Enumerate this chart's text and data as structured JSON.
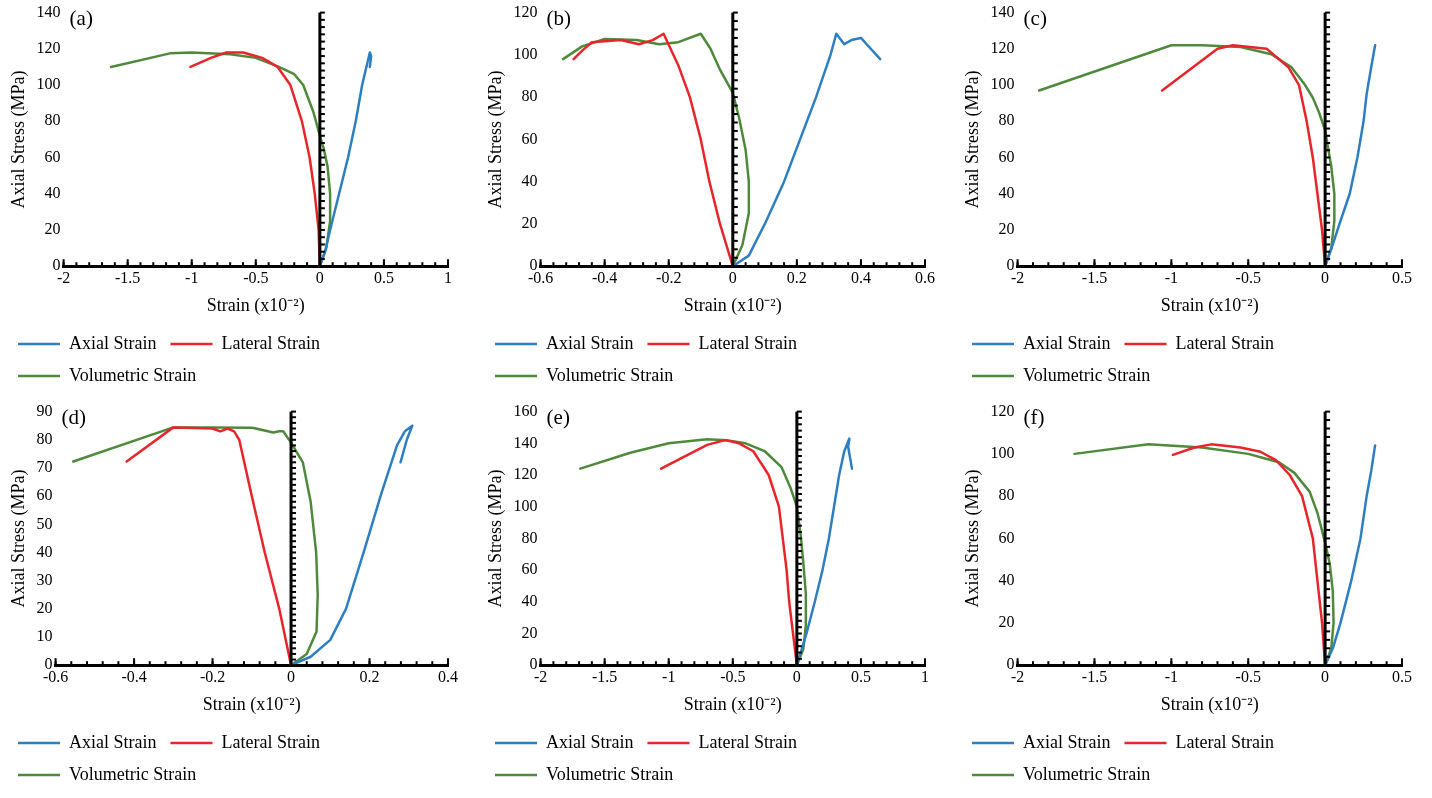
{
  "chart_data": [
    {
      "type": "line",
      "title": "(a)",
      "xlabel": "Strain (x10⁻²)",
      "ylabel": "Axial Stress (MPa)",
      "xlim": [
        -2,
        1
      ],
      "xticks": [
        -2,
        -1.5,
        -1,
        -0.5,
        0,
        0.5,
        1
      ],
      "ylim": [
        0,
        140
      ],
      "yticks": [
        0,
        20,
        40,
        60,
        80,
        100,
        120,
        140
      ],
      "legend": "bottom",
      "series": [
        {
          "name": "Axial Strain",
          "color": "#2e7ec2",
          "x": [
            0,
            0.04,
            0.08,
            0.15,
            0.22,
            0.28,
            0.33,
            0.37,
            0.39,
            0.4,
            0.39
          ],
          "values": [
            0,
            8,
            20,
            40,
            60,
            80,
            100,
            112,
            118,
            116,
            110
          ]
        },
        {
          "name": "Lateral Strain",
          "color": "#e8252a",
          "x": [
            0,
            -0.01,
            -0.04,
            -0.08,
            -0.14,
            -0.23,
            -0.33,
            -0.45,
            -0.6,
            -0.73,
            -0.85,
            -1.01
          ],
          "values": [
            0,
            20,
            40,
            60,
            80,
            100,
            110,
            115,
            118,
            118,
            115,
            110
          ]
        },
        {
          "name": "Volumetric Strain",
          "color": "#4f8a3c",
          "x": [
            0,
            0.05,
            0.08,
            0.08,
            0.06,
            0.03,
            0,
            -0.05,
            -0.13,
            -0.2,
            -0.32,
            -0.5,
            -0.7,
            -1,
            -1.17,
            -1.63
          ],
          "values": [
            0,
            10,
            25,
            40,
            55,
            65,
            72,
            85,
            100,
            106,
            110,
            115,
            117,
            118,
            117.5,
            110
          ]
        }
      ]
    },
    {
      "type": "line",
      "title": "(b)",
      "xlabel": "Strain (x10⁻²)",
      "ylabel": "Axial Stress (MPa)",
      "xlim": [
        -0.6,
        0.6
      ],
      "xticks": [
        -0.6,
        -0.4,
        -0.2,
        0,
        0.2,
        0.4,
        0.6
      ],
      "ylim": [
        0,
        120
      ],
      "yticks": [
        0,
        20,
        40,
        60,
        80,
        100,
        120
      ],
      "legend": "bottom",
      "series": [
        {
          "name": "Axial Strain",
          "color": "#2e7ec2",
          "x": [
            0,
            0.05,
            0.1,
            0.16,
            0.21,
            0.26,
            0.305,
            0.323,
            0.348,
            0.37,
            0.4,
            0.43,
            0.46
          ],
          "values": [
            0,
            5,
            20,
            40,
            60,
            80,
            100,
            110,
            105,
            107,
            108,
            103,
            98
          ]
        },
        {
          "name": "Lateral Strain",
          "color": "#e8252a",
          "x": [
            0,
            -0.04,
            -0.073,
            -0.1,
            -0.134,
            -0.17,
            -0.216,
            -0.25,
            -0.293,
            -0.35,
            -0.44,
            -0.47,
            -0.497
          ],
          "values": [
            0,
            20,
            40,
            60,
            80,
            95,
            110,
            107,
            105,
            107,
            106,
            102,
            98
          ]
        },
        {
          "name": "Volumetric Strain",
          "color": "#4f8a3c",
          "x": [
            0,
            0.03,
            0.05,
            0.05,
            0.04,
            0.02,
            0,
            -0.04,
            -0.07,
            -0.1,
            -0.17,
            -0.23,
            -0.3,
            -0.4,
            -0.47,
            -0.53
          ],
          "values": [
            0,
            10,
            25,
            40,
            55,
            70,
            82,
            93,
            103,
            110,
            106,
            105,
            107,
            107.5,
            104,
            98
          ]
        }
      ]
    },
    {
      "type": "line",
      "title": "(c)",
      "xlabel": "Strain (x10⁻²)",
      "ylabel": "Axial Stress (MPa)",
      "xlim": [
        -2,
        0.5
      ],
      "xticks": [
        -2,
        -1.5,
        -1,
        -0.5,
        0,
        0.5
      ],
      "ylim": [
        0,
        140
      ],
      "yticks": [
        0,
        20,
        40,
        60,
        80,
        100,
        120,
        140
      ],
      "legend": "bottom",
      "series": [
        {
          "name": "Axial Strain",
          "color": "#2e7ec2",
          "x": [
            0,
            0.05,
            0.1,
            0.16,
            0.21,
            0.25,
            0.27,
            0.28,
            0.3,
            0.325
          ],
          "values": [
            0,
            12,
            25,
            40,
            60,
            80,
            95,
            100,
            110,
            122
          ]
        },
        {
          "name": "Lateral Strain",
          "color": "#e8252a",
          "x": [
            0,
            -0.02,
            -0.05,
            -0.08,
            -0.12,
            -0.17,
            -0.24,
            -0.38,
            -0.6,
            -0.7,
            -1.06
          ],
          "values": [
            0,
            20,
            40,
            60,
            80,
            100,
            110,
            120,
            122,
            120,
            97
          ]
        },
        {
          "name": "Volumetric Strain",
          "color": "#4f8a3c",
          "x": [
            0,
            0.04,
            0.06,
            0.06,
            0.04,
            0.02,
            0,
            -0.04,
            -0.08,
            -0.13,
            -0.22,
            -0.35,
            -0.55,
            -0.8,
            -1,
            -1.86
          ],
          "values": [
            0,
            10,
            25,
            40,
            55,
            65,
            75,
            85,
            93,
            100,
            110,
            117,
            121,
            122,
            122,
            97
          ]
        }
      ]
    },
    {
      "type": "line",
      "title": "(d)",
      "xlabel": "Strain (x10⁻²)",
      "ylabel": "Axial Stress (MPa)",
      "xlim": [
        -0.6,
        0.4
      ],
      "xticks": [
        -0.6,
        -0.4,
        -0.2,
        0,
        0.2,
        0.4
      ],
      "ylim": [
        0,
        90
      ],
      "yticks": [
        0,
        10,
        20,
        30,
        40,
        50,
        60,
        70,
        80,
        90
      ],
      "legend": "bottom",
      "series": [
        {
          "name": "Axial Strain",
          "color": "#2e7ec2",
          "x": [
            0,
            0.05,
            0.1,
            0.14,
            0.185,
            0.228,
            0.27,
            0.29,
            0.309,
            0.295,
            0.279
          ],
          "values": [
            0,
            3,
            9,
            20,
            40,
            60,
            78,
            83,
            85,
            80,
            72
          ]
        },
        {
          "name": "Lateral Strain",
          "color": "#e8252a",
          "x": [
            0,
            -0.03,
            -0.067,
            -0.1,
            -0.132,
            -0.145,
            -0.162,
            -0.18,
            -0.2,
            -0.3,
            -0.419
          ],
          "values": [
            0,
            20,
            40,
            60,
            80,
            83,
            84,
            83,
            84,
            84.4,
            72.3
          ]
        },
        {
          "name": "Volumetric Strain",
          "color": "#4f8a3c",
          "x": [
            0,
            0.04,
            0.065,
            0.068,
            0.064,
            0.05,
            0.03,
            0,
            -0.02,
            -0.03,
            -0.045,
            -0.1,
            -0.2,
            -0.3,
            -0.555
          ],
          "values": [
            0,
            4,
            12,
            25,
            40,
            58,
            72,
            79,
            83,
            83,
            82.6,
            84.3,
            84.4,
            84.4,
            72.3
          ]
        }
      ]
    },
    {
      "type": "line",
      "title": "(e)",
      "xlabel": "Strain (x10⁻²)",
      "ylabel": "Axial Stress (MPa)",
      "xlim": [
        -2,
        1
      ],
      "xticks": [
        -2,
        -1.5,
        -1,
        -0.5,
        0,
        0.5,
        1
      ],
      "ylim": [
        0,
        160
      ],
      "yticks": [
        0,
        20,
        40,
        60,
        80,
        100,
        120,
        140,
        160
      ],
      "legend": "bottom",
      "series": [
        {
          "name": "Axial Strain",
          "color": "#2e7ec2",
          "x": [
            0,
            0.03,
            0.075,
            0.14,
            0.2,
            0.25,
            0.29,
            0.33,
            0.37,
            0.41,
            0.4,
            0.43
          ],
          "values": [
            0,
            8,
            20,
            40,
            60,
            80,
            100,
            120,
            135,
            143,
            138,
            124
          ]
        },
        {
          "name": "Lateral Strain",
          "color": "#e8252a",
          "x": [
            0,
            -0.03,
            -0.06,
            -0.08,
            -0.11,
            -0.14,
            -0.22,
            -0.34,
            -0.45,
            -0.56,
            -0.7,
            -1.06
          ],
          "values": [
            0,
            20,
            40,
            60,
            80,
            100,
            120,
            135,
            140,
            142,
            139,
            124
          ]
        },
        {
          "name": "Volumetric Strain",
          "color": "#4f8a3c",
          "x": [
            0,
            0.05,
            0.07,
            0.07,
            0.05,
            0.03,
            0,
            -0.05,
            -0.12,
            -0.25,
            -0.4,
            -0.55,
            -0.7,
            -1,
            -1.3,
            -1.69
          ],
          "values": [
            0,
            10,
            25,
            45,
            65,
            82,
            100,
            112,
            125,
            135,
            140,
            142,
            142.5,
            140,
            134,
            124
          ]
        }
      ]
    },
    {
      "type": "line",
      "title": "(f)",
      "xlabel": "Strain (x10⁻²)",
      "ylabel": "Axial Stress (MPa)",
      "xlim": [
        -2,
        0.5
      ],
      "xticks": [
        -2,
        -1.5,
        -1,
        -0.5,
        0,
        0.5
      ],
      "ylim": [
        0,
        120
      ],
      "yticks": [
        0,
        20,
        40,
        60,
        80,
        100,
        120
      ],
      "legend": "bottom",
      "series": [
        {
          "name": "Axial Strain",
          "color": "#2e7ec2",
          "x": [
            0,
            0.05,
            0.1,
            0.17,
            0.23,
            0.27,
            0.3,
            0.325
          ],
          "values": [
            0,
            8,
            20,
            40,
            60,
            80,
            92,
            104
          ]
        },
        {
          "name": "Lateral Strain",
          "color": "#e8252a",
          "x": [
            0,
            -0.02,
            -0.05,
            -0.08,
            -0.15,
            -0.23,
            -0.32,
            -0.42,
            -0.55,
            -0.74,
            -0.85,
            -0.99
          ],
          "values": [
            0,
            20,
            40,
            60,
            80,
            90,
            97,
            101,
            103,
            104.5,
            103,
            99.5
          ]
        },
        {
          "name": "Volumetric Strain",
          "color": "#4f8a3c",
          "x": [
            0,
            0.04,
            0.055,
            0.05,
            0.03,
            0,
            -0.05,
            -0.1,
            -0.2,
            -0.3,
            -0.5,
            -0.8,
            -1.15,
            -1.63
          ],
          "values": [
            0,
            8,
            20,
            35,
            48,
            58,
            72,
            82,
            91,
            96,
            100,
            103,
            104.5,
            100
          ]
        }
      ]
    }
  ]
}
